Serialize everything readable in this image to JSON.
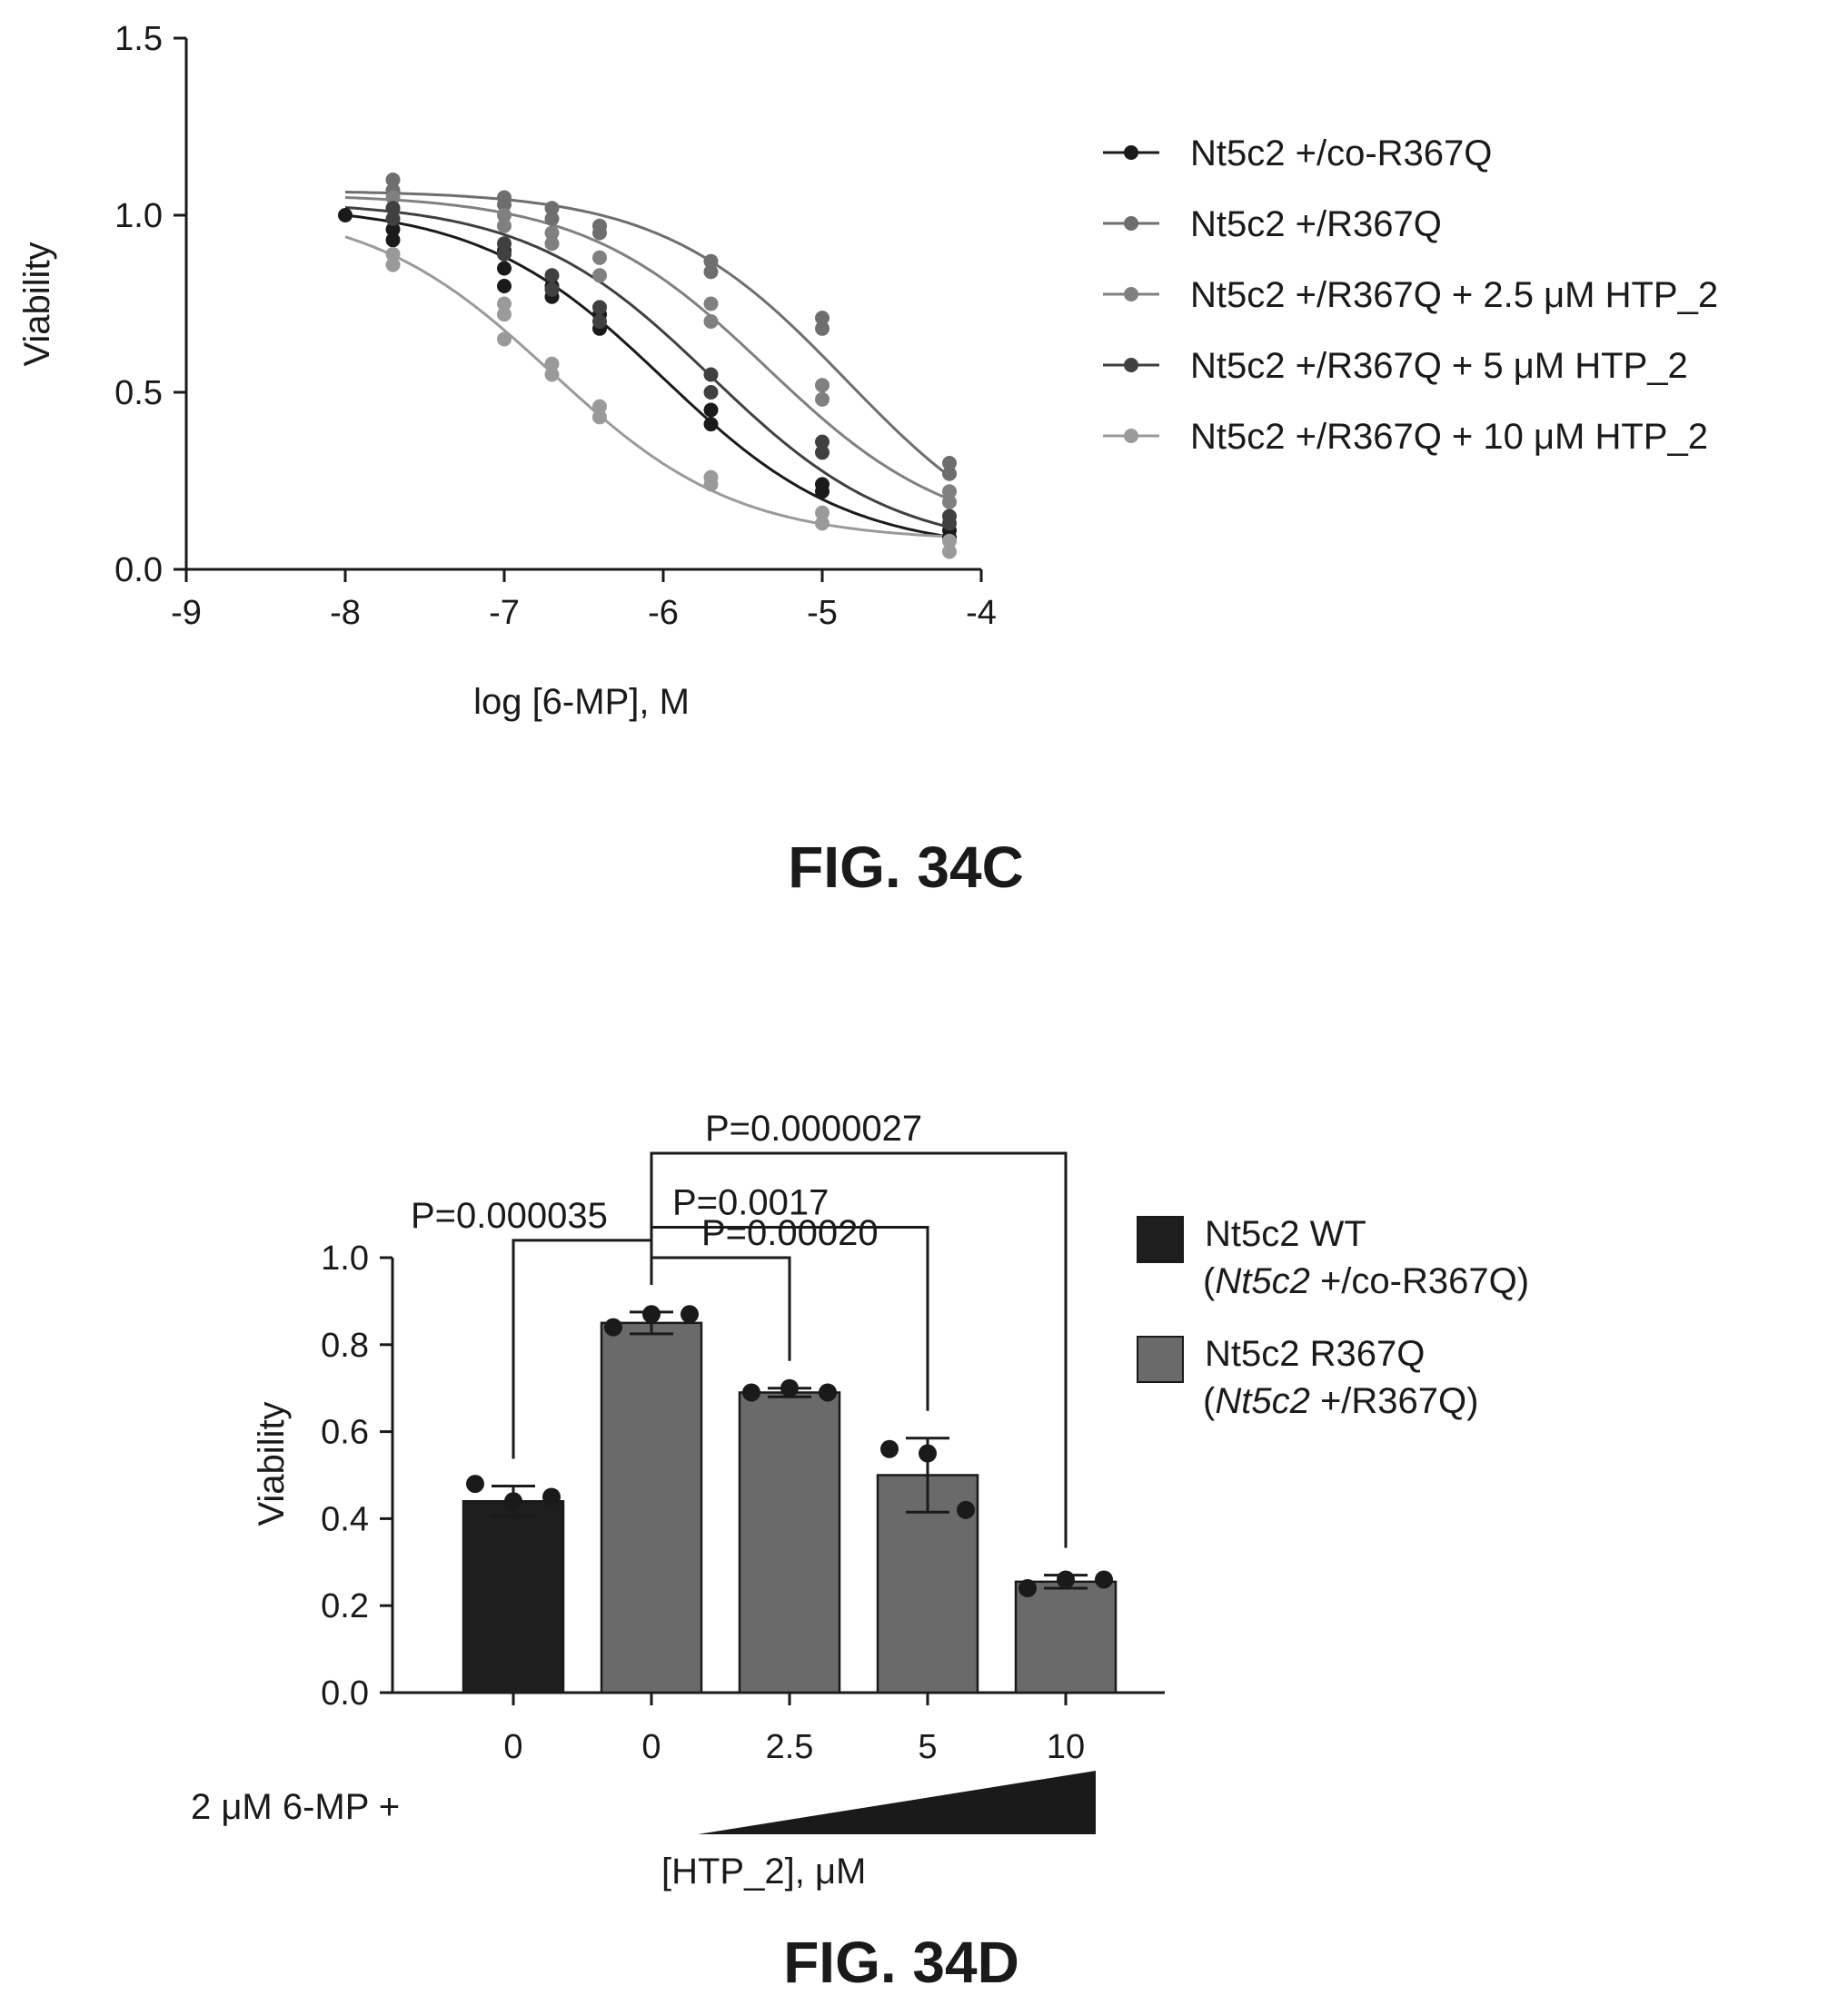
{
  "chart_data": [
    {
      "type": "scatter",
      "title": "",
      "xlabel": "log [6-MP], M",
      "ylabel": "Viability",
      "xlim": [
        -9,
        -4
      ],
      "ylim": [
        0,
        1.5
      ],
      "xticks": [
        "-9",
        "-8",
        "-7",
        "-6",
        "-5",
        "-4"
      ],
      "yticks": [
        "0.0",
        "0.5",
        "1.0",
        "1.5"
      ],
      "grid": false,
      "legend_position": "right",
      "caption": "FIG. 34C",
      "series": [
        {
          "name": "Nt5c2 +/co-R367Q",
          "color": "#1a1a1a",
          "curve": {
            "top": 1.03,
            "bottom": 0.05,
            "log_ic50": -6.0,
            "hill": -0.75
          },
          "points": [
            {
              "x": -8.0,
              "y": 1.0
            },
            {
              "x": -7.7,
              "y": 0.96
            },
            {
              "x": -7.7,
              "y": 0.93
            },
            {
              "x": -7.0,
              "y": 0.9
            },
            {
              "x": -7.0,
              "y": 0.85
            },
            {
              "x": -7.0,
              "y": 0.8
            },
            {
              "x": -6.7,
              "y": 0.8
            },
            {
              "x": -6.7,
              "y": 0.77
            },
            {
              "x": -6.4,
              "y": 0.72
            },
            {
              "x": -6.4,
              "y": 0.68
            },
            {
              "x": -5.7,
              "y": 0.45
            },
            {
              "x": -5.7,
              "y": 0.41
            },
            {
              "x": -5.0,
              "y": 0.24
            },
            {
              "x": -5.0,
              "y": 0.22
            },
            {
              "x": -4.2,
              "y": 0.11
            },
            {
              "x": -4.2,
              "y": 0.09
            }
          ]
        },
        {
          "name": "Nt5c2 +/R367Q",
          "color": "#6e6e6e",
          "curve": {
            "top": 1.07,
            "bottom": 0.0,
            "log_ic50": -4.85,
            "hill": -0.75
          },
          "points": [
            {
              "x": -7.7,
              "y": 1.1
            },
            {
              "x": -7.7,
              "y": 1.07
            },
            {
              "x": -7.0,
              "y": 1.05
            },
            {
              "x": -7.0,
              "y": 1.03
            },
            {
              "x": -6.7,
              "y": 1.02
            },
            {
              "x": -6.7,
              "y": 0.99
            },
            {
              "x": -6.4,
              "y": 0.97
            },
            {
              "x": -6.4,
              "y": 0.95
            },
            {
              "x": -5.7,
              "y": 0.87
            },
            {
              "x": -5.7,
              "y": 0.84
            },
            {
              "x": -5.0,
              "y": 0.71
            },
            {
              "x": -5.0,
              "y": 0.68
            },
            {
              "x": -4.2,
              "y": 0.3
            },
            {
              "x": -4.2,
              "y": 0.27
            }
          ]
        },
        {
          "name": "Nt5c2 +/R367Q + 2.5 μM HTP_2",
          "color": "#808080",
          "curve": {
            "top": 1.06,
            "bottom": 0.08,
            "log_ic50": -5.35,
            "hill": -0.75
          },
          "points": [
            {
              "x": -7.7,
              "y": 1.05
            },
            {
              "x": -7.7,
              "y": 1.02
            },
            {
              "x": -7.0,
              "y": 1.0
            },
            {
              "x": -7.0,
              "y": 0.97
            },
            {
              "x": -6.7,
              "y": 0.95
            },
            {
              "x": -6.7,
              "y": 0.92
            },
            {
              "x": -6.4,
              "y": 0.88
            },
            {
              "x": -6.4,
              "y": 0.83
            },
            {
              "x": -5.7,
              "y": 0.75
            },
            {
              "x": -5.7,
              "y": 0.7
            },
            {
              "x": -5.0,
              "y": 0.52
            },
            {
              "x": -5.0,
              "y": 0.48
            },
            {
              "x": -4.2,
              "y": 0.22
            },
            {
              "x": -4.2,
              "y": 0.19
            }
          ]
        },
        {
          "name": "Nt5c2 +/R367Q + 5 μM HTP_2",
          "color": "#404040",
          "curve": {
            "top": 1.04,
            "bottom": 0.05,
            "log_ic50": -5.7,
            "hill": -0.75
          },
          "points": [
            {
              "x": -7.7,
              "y": 1.02
            },
            {
              "x": -7.7,
              "y": 0.99
            },
            {
              "x": -7.0,
              "y": 0.92
            },
            {
              "x": -7.0,
              "y": 0.89
            },
            {
              "x": -6.7,
              "y": 0.83
            },
            {
              "x": -6.7,
              "y": 0.79
            },
            {
              "x": -6.4,
              "y": 0.74
            },
            {
              "x": -6.4,
              "y": 0.7
            },
            {
              "x": -5.7,
              "y": 0.55
            },
            {
              "x": -5.7,
              "y": 0.5
            },
            {
              "x": -5.0,
              "y": 0.36
            },
            {
              "x": -5.0,
              "y": 0.33
            },
            {
              "x": -4.2,
              "y": 0.15
            },
            {
              "x": -4.2,
              "y": 0.13
            }
          ]
        },
        {
          "name": "Nt5c2 +/R367Q + 10 μM HTP_2",
          "color": "#9a9a9a",
          "curve": {
            "top": 1.03,
            "bottom": 0.08,
            "log_ic50": -6.7,
            "hill": -0.75
          },
          "points": [
            {
              "x": -7.7,
              "y": 0.89
            },
            {
              "x": -7.7,
              "y": 0.86
            },
            {
              "x": -7.0,
              "y": 0.75
            },
            {
              "x": -7.0,
              "y": 0.72
            },
            {
              "x": -7.0,
              "y": 0.65
            },
            {
              "x": -6.7,
              "y": 0.58
            },
            {
              "x": -6.7,
              "y": 0.55
            },
            {
              "x": -6.4,
              "y": 0.46
            },
            {
              "x": -6.4,
              "y": 0.43
            },
            {
              "x": -5.7,
              "y": 0.26
            },
            {
              "x": -5.7,
              "y": 0.24
            },
            {
              "x": -5.0,
              "y": 0.16
            },
            {
              "x": -5.0,
              "y": 0.13
            },
            {
              "x": -4.2,
              "y": 0.08
            },
            {
              "x": -4.2,
              "y": 0.05
            }
          ]
        }
      ]
    },
    {
      "type": "bar",
      "title": "",
      "xlabel": "[HTP_2], μM",
      "ylabel": "Viability",
      "ylim": [
        0,
        1.0
      ],
      "yticks": [
        "0.0",
        "0.2",
        "0.4",
        "0.6",
        "0.8",
        "1.0"
      ],
      "categories": [
        "0",
        "0",
        "2.5",
        "5",
        "10"
      ],
      "row_label": "2 μM 6-MP +",
      "values": [
        0.44,
        0.85,
        0.69,
        0.5,
        0.255
      ],
      "errors": [
        0.035,
        0.025,
        0.01,
        0.085,
        0.015
      ],
      "bar_colors": [
        "#1e1e1e",
        "#6a6a6a",
        "#6a6a6a",
        "#6a6a6a",
        "#6a6a6a"
      ],
      "points": [
        [
          0.48,
          0.44,
          0.45
        ],
        [
          0.84,
          0.87,
          0.87
        ],
        [
          0.69,
          0.7,
          0.69
        ],
        [
          0.56,
          0.55,
          0.42
        ],
        [
          0.24,
          0.26,
          0.26
        ]
      ],
      "comparisons": [
        {
          "label": "P=0.000035",
          "from": 0,
          "to": 1,
          "y": 1.04
        },
        {
          "label": "P=0.00020",
          "from": 1,
          "to": 2,
          "y": 1.0
        },
        {
          "label": "P=0.0017",
          "from": 1,
          "to": 3,
          "y": 1.07
        },
        {
          "label": "P=0.0000027",
          "from": 1,
          "to": 4,
          "y": 1.24
        }
      ],
      "legend": [
        {
          "line1": "Nt5c2 WT",
          "italic": "Nt5c2",
          "rest": " +/co-R367Q",
          "color": "#1e1e1e"
        },
        {
          "line1": "Nt5c2 R367Q",
          "italic": "Nt5c2",
          "rest": " +/R367Q",
          "color": "#6a6a6a"
        }
      ],
      "caption": "FIG. 34D"
    }
  ]
}
